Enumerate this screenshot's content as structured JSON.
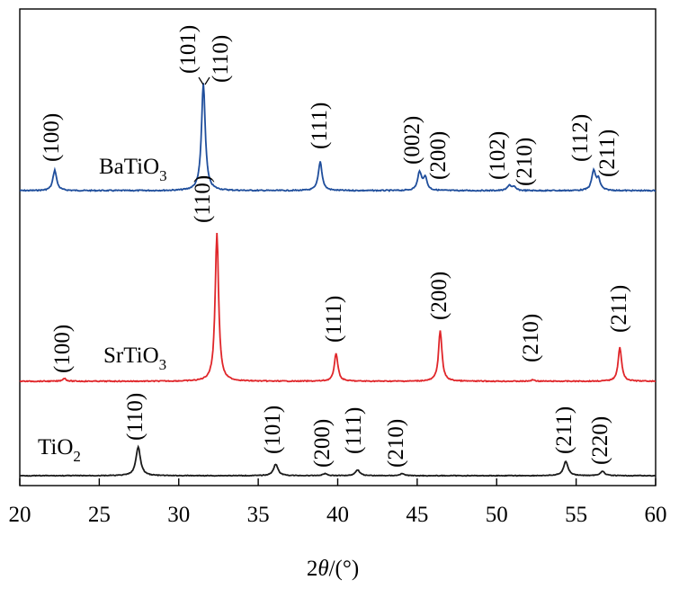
{
  "chart_data": {
    "type": "line",
    "title": "",
    "xlabel": {
      "prefix": "2",
      "symbol": "θ",
      "suffix": "/(°)"
    },
    "ylabel": "",
    "xlim": [
      20,
      60
    ],
    "xticks": [
      20,
      25,
      30,
      35,
      40,
      45,
      50,
      55,
      60
    ],
    "y_ticks_shown": false,
    "grid": false,
    "legend": "none",
    "series": [
      {
        "name_main": "BaTiO",
        "name_sub": "3",
        "color": "#1f4e9c",
        "peaks": [
          {
            "x": 22.2,
            "label": "(100)",
            "height": 0.19
          },
          {
            "x": 31.55,
            "label": "(101)",
            "height": 1.0,
            "label_group": "(101)(110)"
          },
          {
            "x": 38.9,
            "label": "(111)",
            "height": 0.27
          },
          {
            "x": 45.15,
            "label": "(002)",
            "height": 0.17
          },
          {
            "x": 45.5,
            "label": "(200)",
            "height": 0.12
          },
          {
            "x": 50.8,
            "label": "(102)",
            "height": 0.05
          },
          {
            "x": 51.1,
            "label": "(210)",
            "height": 0.03
          },
          {
            "x": 56.1,
            "label": "(112)",
            "height": 0.18
          },
          {
            "x": 56.4,
            "label": "(211)",
            "height": 0.1
          }
        ],
        "extra_labels": [
          "(110)"
        ]
      },
      {
        "name_main": "SrTiO",
        "name_sub": "3",
        "color": "#e0262a",
        "peaks": [
          {
            "x": 22.8,
            "label": "(100)",
            "height": 0.02
          },
          {
            "x": 32.4,
            "label": "(110)",
            "height": 1.0
          },
          {
            "x": 39.9,
            "label": "(111)",
            "height": 0.19
          },
          {
            "x": 46.45,
            "label": "(200)",
            "height": 0.34
          },
          {
            "x": 52.3,
            "label": "(210)",
            "height": 0.01
          },
          {
            "x": 57.75,
            "label": "(211)",
            "height": 0.23
          }
        ]
      },
      {
        "name_main": "TiO",
        "name_sub": "2",
        "color": "#1a1a1a",
        "peaks": [
          {
            "x": 27.45,
            "label": "(110)",
            "height": 1.0
          },
          {
            "x": 36.1,
            "label": "(101)",
            "height": 0.4
          },
          {
            "x": 39.2,
            "label": "(200)",
            "height": 0.07
          },
          {
            "x": 41.25,
            "label": "(111)",
            "height": 0.2
          },
          {
            "x": 44.05,
            "label": "(210)",
            "height": 0.07
          },
          {
            "x": 54.35,
            "label": "(211)",
            "height": 0.5
          },
          {
            "x": 56.65,
            "label": "(220)",
            "height": 0.15
          }
        ]
      }
    ]
  }
}
